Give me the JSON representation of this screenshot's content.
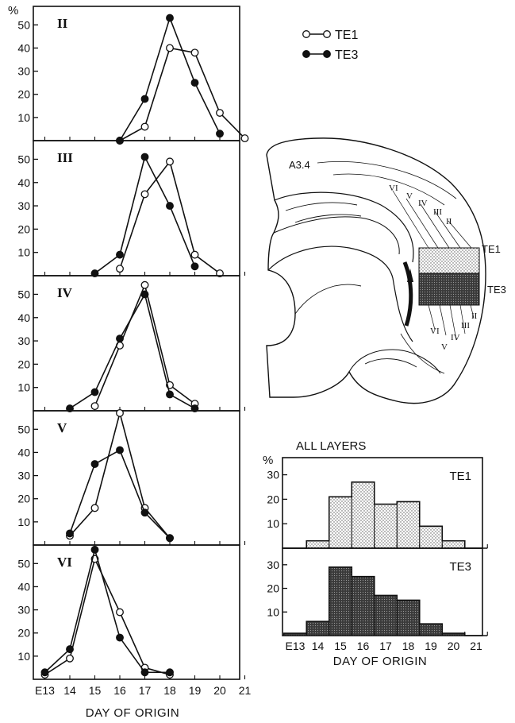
{
  "legend": [
    {
      "name": "TE1",
      "marker": "open-circle"
    },
    {
      "name": "TE3",
      "marker": "filled-circle"
    }
  ],
  "y_unit_label": "%",
  "x_title": "DAY OF ORIGIN",
  "x_tick_labels": [
    "E13",
    "14",
    "15",
    "16",
    "17",
    "18",
    "19",
    "20",
    "21"
  ],
  "brain": {
    "section_label": "A3.4",
    "area_labels": [
      "TE1",
      "TE3"
    ],
    "layer_labels_top": [
      "VI",
      "V",
      "IV",
      "III",
      "II"
    ],
    "layer_labels_bottom": [
      "VI",
      "V",
      "IV",
      "III",
      "II"
    ]
  },
  "hist_title": "ALL LAYERS",
  "colors": {
    "ink": "#111111",
    "te1_fill": "#d9d9d9",
    "te3_fill": "#3a3a3a",
    "background": "#ffffff"
  },
  "chart_data": [
    {
      "type": "line",
      "panel_label": "II",
      "x": [
        "E13",
        "14",
        "15",
        "16",
        "17",
        "18",
        "19",
        "20",
        "21"
      ],
      "ylim": [
        0,
        58
      ],
      "yticks": [
        10,
        20,
        30,
        40,
        50
      ],
      "series": [
        {
          "name": "TE1",
          "x": [
            "16",
            "17",
            "18",
            "19",
            "20",
            "21"
          ],
          "values": [
            0,
            6,
            40,
            38,
            12,
            1
          ]
        },
        {
          "name": "TE3",
          "x": [
            "16",
            "17",
            "18",
            "19",
            "20"
          ],
          "values": [
            0,
            18,
            53,
            25,
            3
          ]
        }
      ]
    },
    {
      "type": "line",
      "panel_label": "III",
      "x": [
        "E13",
        "14",
        "15",
        "16",
        "17",
        "18",
        "19",
        "20",
        "21"
      ],
      "ylim": [
        0,
        58
      ],
      "yticks": [
        10,
        20,
        30,
        40,
        50
      ],
      "series": [
        {
          "name": "TE1",
          "x": [
            "16",
            "17",
            "18",
            "19",
            "20"
          ],
          "values": [
            3,
            35,
            49,
            9,
            1
          ]
        },
        {
          "name": "TE3",
          "x": [
            "15",
            "16",
            "17",
            "18",
            "19"
          ],
          "values": [
            1,
            9,
            51,
            30,
            4
          ]
        }
      ]
    },
    {
      "type": "line",
      "panel_label": "IV",
      "x": [
        "E13",
        "14",
        "15",
        "16",
        "17",
        "18",
        "19",
        "20",
        "21"
      ],
      "ylim": [
        0,
        58
      ],
      "yticks": [
        10,
        20,
        30,
        40,
        50
      ],
      "series": [
        {
          "name": "TE1",
          "x": [
            "15",
            "16",
            "17",
            "18",
            "19"
          ],
          "values": [
            2,
            28,
            54,
            11,
            3
          ]
        },
        {
          "name": "TE3",
          "x": [
            "14",
            "15",
            "16",
            "17",
            "18",
            "19"
          ],
          "values": [
            1,
            8,
            31,
            50,
            7,
            1
          ]
        }
      ]
    },
    {
      "type": "line",
      "panel_label": "V",
      "x": [
        "E13",
        "14",
        "15",
        "16",
        "17",
        "18",
        "19",
        "20",
        "21"
      ],
      "ylim": [
        0,
        58
      ],
      "yticks": [
        10,
        20,
        30,
        40,
        50
      ],
      "series": [
        {
          "name": "TE1",
          "x": [
            "14",
            "15",
            "16",
            "17",
            "18"
          ],
          "values": [
            4,
            16,
            57,
            16,
            3
          ]
        },
        {
          "name": "TE3",
          "x": [
            "14",
            "15",
            "16",
            "17",
            "18"
          ],
          "values": [
            5,
            35,
            41,
            14,
            3
          ]
        }
      ]
    },
    {
      "type": "line",
      "panel_label": "VI",
      "x": [
        "E13",
        "14",
        "15",
        "16",
        "17",
        "18",
        "19",
        "20",
        "21"
      ],
      "ylim": [
        0,
        58
      ],
      "yticks": [
        10,
        20,
        30,
        40,
        50
      ],
      "series": [
        {
          "name": "TE1",
          "x": [
            "E13",
            "14",
            "15",
            "16",
            "17",
            "18"
          ],
          "values": [
            2,
            9,
            52,
            29,
            5,
            2
          ]
        },
        {
          "name": "TE3",
          "x": [
            "E13",
            "14",
            "15",
            "16",
            "17",
            "18"
          ],
          "values": [
            3,
            13,
            56,
            18,
            3,
            3
          ]
        }
      ]
    },
    {
      "type": "bar",
      "title": "ALL LAYERS",
      "panel_label": "TE1",
      "categories": [
        "E13",
        "14",
        "15",
        "16",
        "17",
        "18",
        "19",
        "20",
        "21"
      ],
      "values": [
        0,
        3,
        21,
        27,
        18,
        19,
        9,
        3,
        0
      ],
      "ylim": [
        0,
        37
      ],
      "yticks": [
        10,
        20,
        30
      ],
      "ylabel": "%"
    },
    {
      "type": "bar",
      "panel_label": "TE3",
      "categories": [
        "E13",
        "14",
        "15",
        "16",
        "17",
        "18",
        "19",
        "20",
        "21"
      ],
      "values": [
        1,
        6,
        29,
        25,
        17,
        15,
        5,
        1,
        0
      ],
      "ylim": [
        0,
        37
      ],
      "yticks": [
        10,
        20,
        30
      ],
      "xlabel": "DAY OF ORIGIN"
    }
  ]
}
